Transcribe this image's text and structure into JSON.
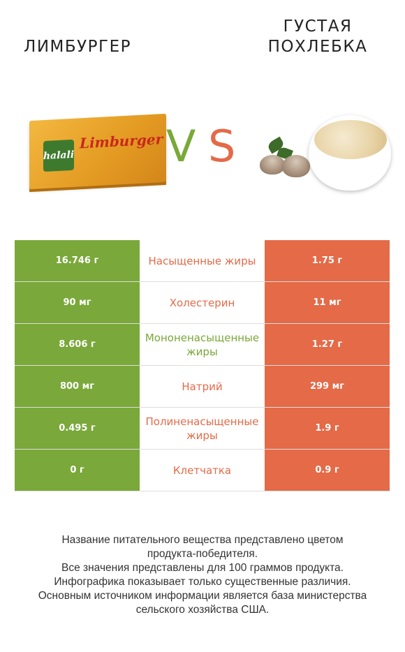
{
  "left_title": "ЛИМБУРГЕР",
  "right_title": "ГУСТАЯ\nПОХЛЕБКА",
  "cheese_label": {
    "brand": "halali",
    "name": "Limburger"
  },
  "vs": {
    "v": "V",
    "s": "S"
  },
  "colors": {
    "left": "#7aa83a",
    "right": "#e46a48"
  },
  "rows": [
    {
      "left": "16.746 г",
      "label": "Насыщенные жиры",
      "right": "1.75 г",
      "winner": "right"
    },
    {
      "left": "90 мг",
      "label": "Холестерин",
      "right": "11 мг",
      "winner": "right"
    },
    {
      "left": "8.606 г",
      "label": "Мононенасыщенные жиры",
      "right": "1.27 г",
      "winner": "left"
    },
    {
      "left": "800 мг",
      "label": "Натрий",
      "right": "299 мг",
      "winner": "right"
    },
    {
      "left": "0.495 г",
      "label": "Полиненасыщенные жиры",
      "right": "1.9 г",
      "winner": "right"
    },
    {
      "left": "0 г",
      "label": "Клетчатка",
      "right": "0.9 г",
      "winner": "right"
    }
  ],
  "footer": [
    "Название питательного вещества представлено цветом",
    "продукта-победителя.",
    "Все значения представлены для 100 граммов продукта.",
    "Инфографика показывает только существенные различия.",
    "Основным источником информации является база министерства",
    "сельского хозяйства США."
  ]
}
